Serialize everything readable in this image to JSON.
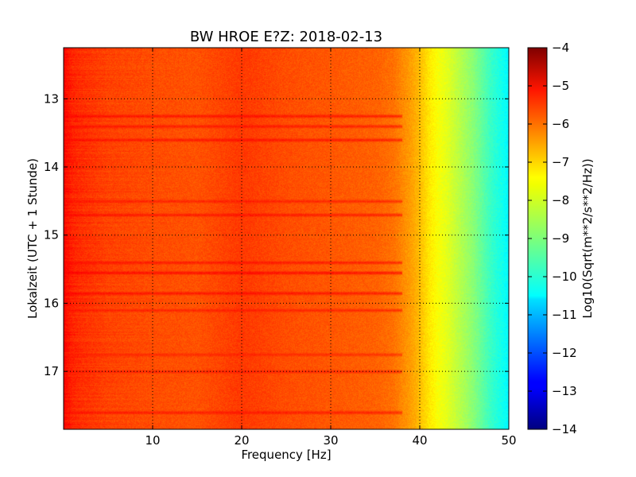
{
  "chart_data": {
    "type": "heatmap",
    "title": "BW HROE E?Z: 2018-02-13",
    "xlabel": "Frequency [Hz]",
    "ylabel": "Lokalzeit (UTC + 1 Stunde)",
    "colorbar_label": "Log10(Sqrt(m**2/s**2/Hz))",
    "xlim": [
      0,
      50
    ],
    "ylim": [
      12.25,
      17.85
    ],
    "y_inverted": true,
    "x_ticks": [
      10,
      20,
      30,
      40,
      50
    ],
    "x_tick_labels": [
      "10",
      "20",
      "30",
      "40",
      "50"
    ],
    "y_ticks": [
      13,
      14,
      15,
      16,
      17
    ],
    "y_tick_labels": [
      "13",
      "14",
      "15",
      "16",
      "17"
    ],
    "colorbar_range": [
      -14,
      -4
    ],
    "colorbar_ticks": [
      -4,
      -5,
      -6,
      -7,
      -8,
      -9,
      -10,
      -11,
      -12,
      -13,
      -14
    ],
    "colorbar_tick_labels": [
      "−4",
      "−5",
      "−6",
      "−7",
      "−8",
      "−9",
      "−10",
      "−11",
      "−12",
      "−13",
      "−14"
    ],
    "colormap": "jet",
    "grid": true,
    "profile_frequency_hz": [
      0,
      1,
      2,
      5,
      10,
      15,
      20,
      25,
      30,
      35,
      37,
      39,
      40,
      41,
      42,
      43,
      44,
      45,
      46,
      47,
      48,
      49,
      50
    ],
    "profile_level": [
      -5.3,
      -5.6,
      -5.7,
      -5.9,
      -6.0,
      -6.05,
      -5.8,
      -6.0,
      -6.1,
      -6.2,
      -6.35,
      -6.8,
      -7.1,
      -7.5,
      -7.8,
      -8.0,
      -8.3,
      -8.6,
      -8.9,
      -9.3,
      -9.7,
      -10.0,
      -10.3
    ],
    "noise_bands_hour": [
      13.25,
      13.4,
      13.6,
      14.5,
      14.7,
      15.4,
      15.55,
      15.85,
      16.1,
      16.75,
      17.0,
      17.6
    ],
    "noise_bands_level": [
      -5.2,
      -5.3,
      -5.2,
      -5.4,
      -5.3,
      -5.3,
      -5.1,
      -5.2,
      -5.4,
      -5.5,
      -5.4,
      -5.3
    ]
  }
}
